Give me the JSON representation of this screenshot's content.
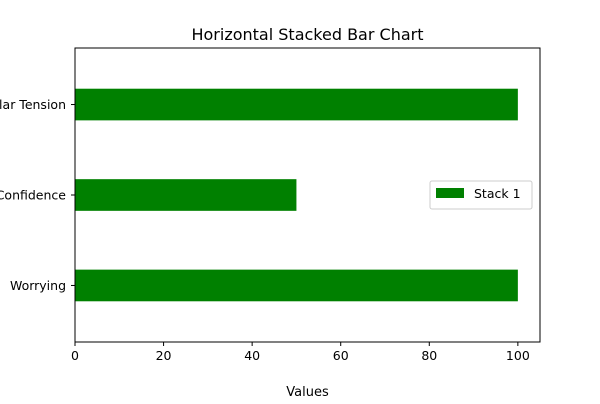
{
  "chart_data": {
    "type": "bar",
    "orientation": "horizontal",
    "stacked": true,
    "title": "Horizontal Stacked Bar Chart",
    "xlabel": "Values",
    "ylabel": "",
    "categories": [
      "Worrying",
      "Confidence",
      "Muscular Tension"
    ],
    "series": [
      {
        "name": "Stack 1",
        "values": [
          100,
          50,
          100
        ],
        "color": "#008000"
      }
    ],
    "xlim": [
      0,
      105
    ],
    "xticks": [
      0,
      20,
      40,
      60,
      80,
      100
    ],
    "grid": false,
    "legend_position": "center-right"
  }
}
